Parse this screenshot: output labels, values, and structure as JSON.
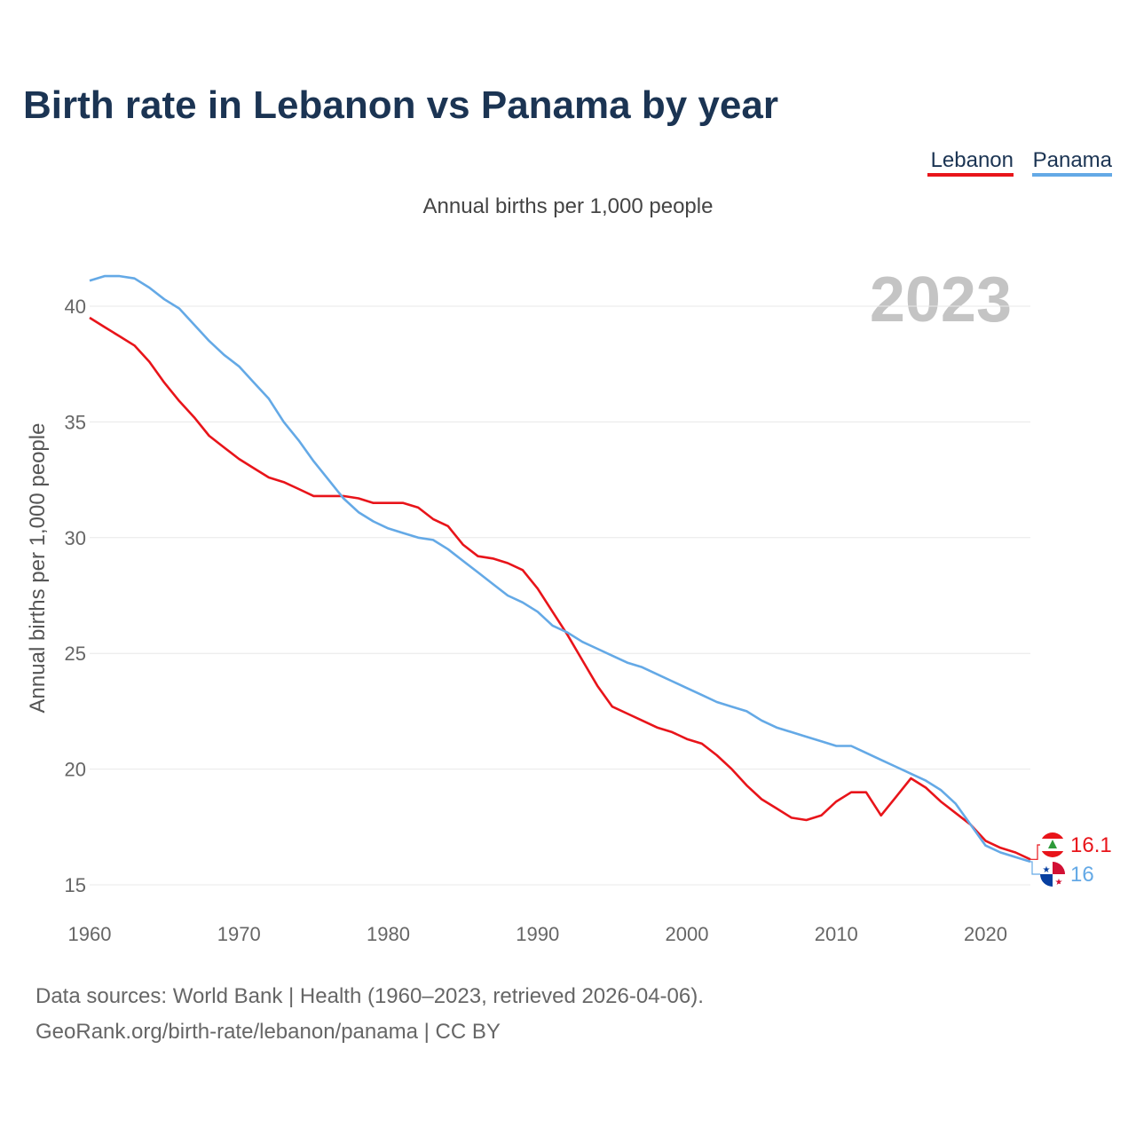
{
  "title": "Birth rate in Lebanon vs Panama by year",
  "subtitle": "Annual births per 1,000 people",
  "current_year": "2023",
  "source_line1": "Data sources: World Bank | Health (1960–2023, retrieved 2026-04-06).",
  "source_line2": "GeoRank.org/birth-rate/lebanon/panama | CC BY",
  "colors": {
    "lebanon": "#e8141a",
    "panama": "#64a9e6",
    "title": "#1b3453"
  },
  "chart_data": {
    "type": "line",
    "title": "Birth rate in Lebanon vs Panama by year",
    "xlabel": "",
    "ylabel": "Annual births per 1,000 people",
    "xlim": [
      1960,
      2023
    ],
    "ylim": [
      15,
      41.5
    ],
    "x_ticks": [
      1960,
      1970,
      1980,
      1990,
      2000,
      2010,
      2020
    ],
    "y_ticks": [
      15,
      20,
      25,
      30,
      35,
      40
    ],
    "x_tick_labels": [
      "1960",
      "1970",
      "1980",
      "1990",
      "2000",
      "2010",
      "2020"
    ],
    "y_tick_labels": [
      "15",
      "20",
      "25",
      "30",
      "35",
      "40"
    ],
    "grid": true,
    "legend": "top-right",
    "x": [
      1960,
      1961,
      1962,
      1963,
      1964,
      1965,
      1966,
      1967,
      1968,
      1969,
      1970,
      1971,
      1972,
      1973,
      1974,
      1975,
      1976,
      1977,
      1978,
      1979,
      1980,
      1981,
      1982,
      1983,
      1984,
      1985,
      1986,
      1987,
      1988,
      1989,
      1990,
      1991,
      1992,
      1993,
      1994,
      1995,
      1996,
      1997,
      1998,
      1999,
      2000,
      2001,
      2002,
      2003,
      2004,
      2005,
      2006,
      2007,
      2008,
      2009,
      2010,
      2011,
      2012,
      2013,
      2014,
      2015,
      2016,
      2017,
      2018,
      2019,
      2020,
      2021,
      2022,
      2023
    ],
    "series": [
      {
        "name": "Lebanon",
        "end_label": "16.1",
        "values": [
          39.5,
          39.1,
          38.7,
          38.3,
          37.6,
          36.7,
          35.9,
          35.2,
          34.4,
          33.9,
          33.4,
          33.0,
          32.6,
          32.4,
          32.1,
          31.8,
          31.8,
          31.8,
          31.7,
          31.5,
          31.5,
          31.5,
          31.3,
          30.8,
          30.5,
          29.7,
          29.2,
          29.1,
          28.9,
          28.6,
          27.8,
          26.8,
          25.8,
          24.7,
          23.6,
          22.7,
          22.4,
          22.1,
          21.8,
          21.6,
          21.3,
          21.1,
          20.6,
          20.0,
          19.3,
          18.7,
          18.3,
          17.9,
          17.8,
          18.0,
          18.6,
          19.0,
          19.0,
          18.0,
          18.8,
          19.6,
          19.2,
          18.6,
          18.1,
          17.6,
          16.9,
          16.6,
          16.4,
          16.1
        ]
      },
      {
        "name": "Panama",
        "end_label": "16",
        "values": [
          41.1,
          41.3,
          41.3,
          41.2,
          40.8,
          40.3,
          39.9,
          39.2,
          38.5,
          37.9,
          37.4,
          36.7,
          36.0,
          35.0,
          34.2,
          33.3,
          32.5,
          31.7,
          31.1,
          30.7,
          30.4,
          30.2,
          30.0,
          29.9,
          29.5,
          29.0,
          28.5,
          28.0,
          27.5,
          27.2,
          26.8,
          26.2,
          25.9,
          25.5,
          25.2,
          24.9,
          24.6,
          24.4,
          24.1,
          23.8,
          23.5,
          23.2,
          22.9,
          22.7,
          22.5,
          22.1,
          21.8,
          21.6,
          21.4,
          21.2,
          21.0,
          21.0,
          20.7,
          20.4,
          20.1,
          19.8,
          19.5,
          19.1,
          18.5,
          17.6,
          16.7,
          16.4,
          16.2,
          16.0
        ]
      }
    ]
  }
}
